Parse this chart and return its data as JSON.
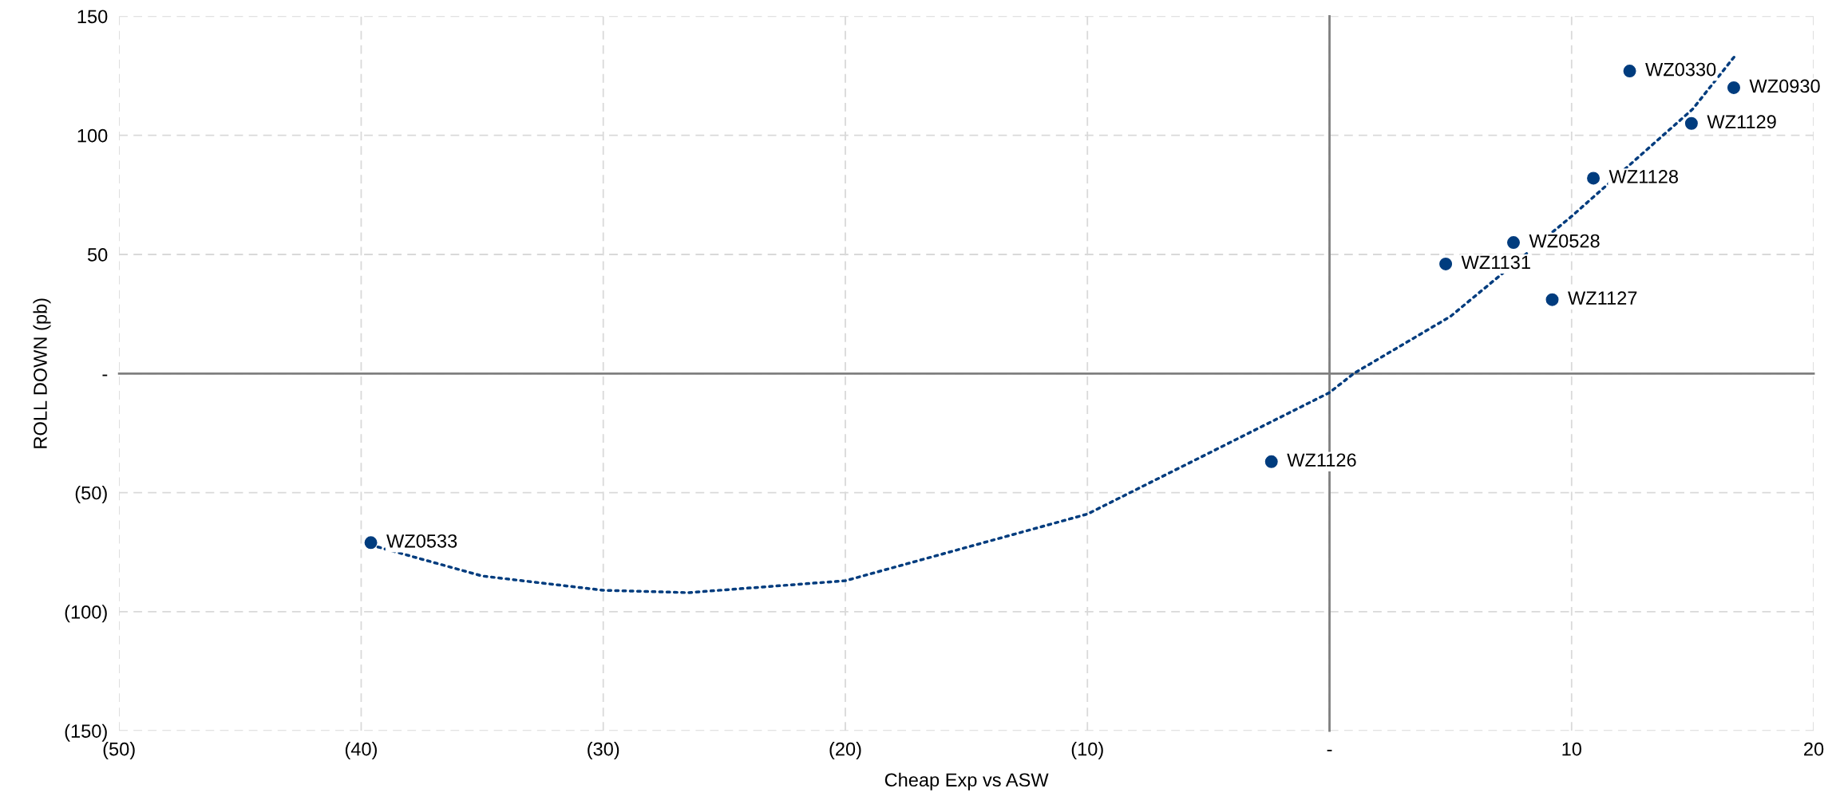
{
  "chart_data": {
    "type": "scatter",
    "xlabel": "Cheap Exp vs ASW",
    "ylabel": "ROLL DOWN (pb)",
    "xlim": [
      -50,
      20
    ],
    "ylim": [
      -150,
      150
    ],
    "xticks": [
      {
        "value": -50,
        "label": "(50)"
      },
      {
        "value": -40,
        "label": "(40)"
      },
      {
        "value": -30,
        "label": "(30)"
      },
      {
        "value": -20,
        "label": "(20)"
      },
      {
        "value": -10,
        "label": "(10)"
      },
      {
        "value": 0,
        "label": "-"
      },
      10,
      20
    ],
    "yticks": [
      {
        "value": -150,
        "label": "(150)"
      },
      {
        "value": -100,
        "label": "(100)"
      },
      {
        "value": -50,
        "label": "(50)"
      },
      {
        "value": 0,
        "label": "-"
      },
      50,
      100,
      150
    ],
    "grid": true,
    "series": [
      {
        "marker": "circle",
        "color": "#003c7e",
        "x": [
          12.4,
          16.7,
          14.95,
          10.9,
          7.6,
          4.8,
          9.2,
          -2.4,
          -39.6
        ],
        "values": [
          127,
          120,
          105,
          82,
          55,
          46,
          31,
          -37,
          -71
        ],
        "value_labels": [
          "WZ0330",
          "WZ0930",
          "WZ1129",
          "WZ1128",
          "WZ0528",
          "WZ1131",
          "WZ1127",
          "WZ1126",
          "WZ0533"
        ]
      },
      {
        "type": "line",
        "color": "#003c7e",
        "line_style": "dotted",
        "x": [
          -39.6,
          -35,
          -30,
          -26.5,
          -20,
          -10,
          0,
          1,
          5,
          10,
          15,
          16.8
        ],
        "values": [
          -72,
          -85,
          -91,
          -92,
          -87,
          -59,
          -8,
          0,
          24,
          66,
          111,
          134
        ]
      }
    ]
  }
}
